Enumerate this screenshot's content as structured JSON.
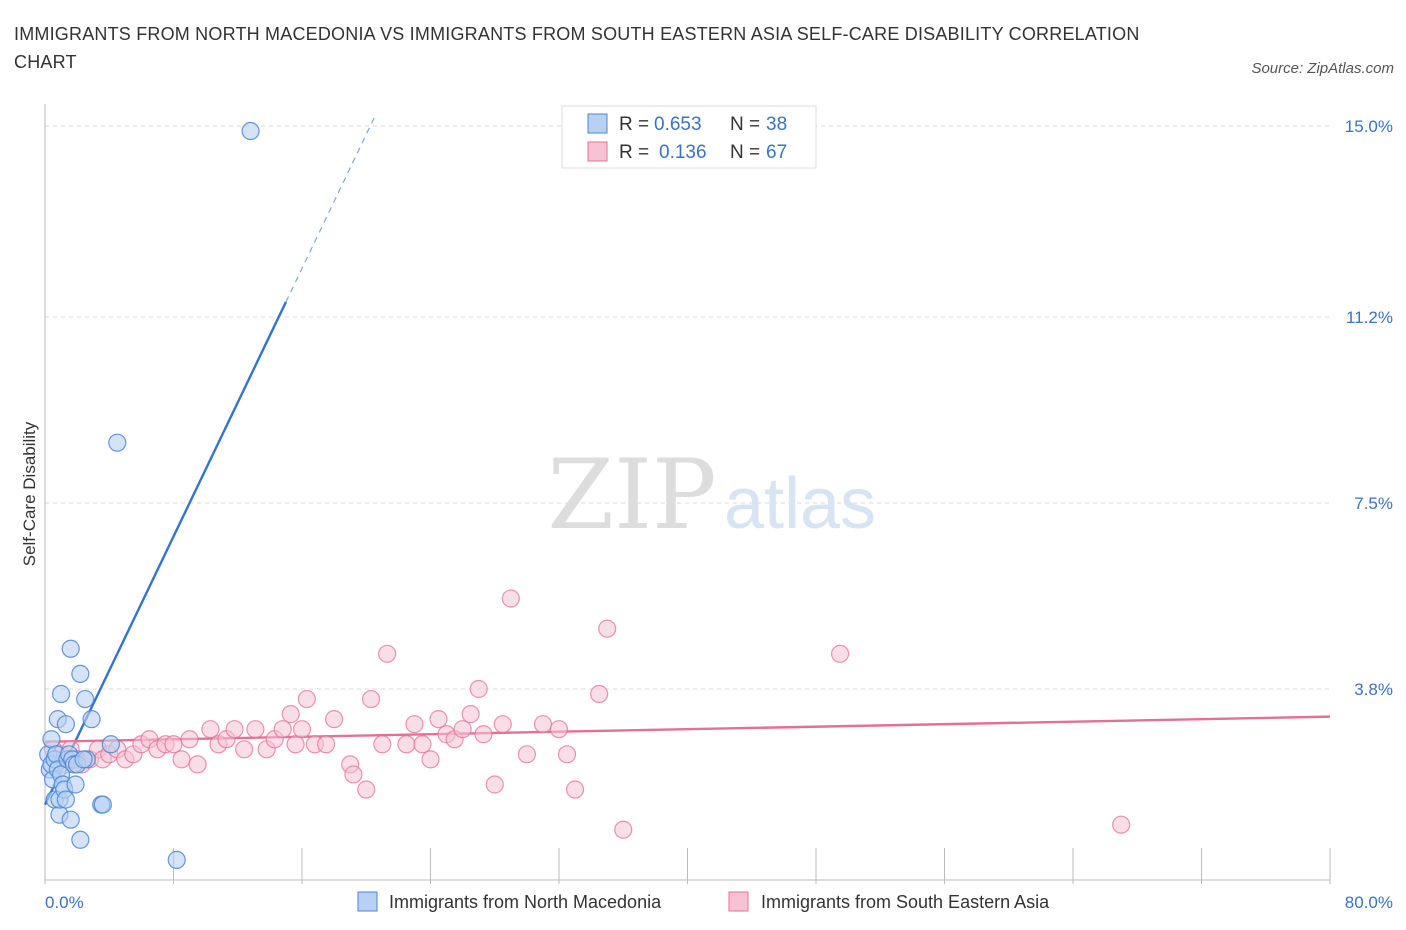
{
  "title": "IMMIGRANTS FROM NORTH MACEDONIA VS IMMIGRANTS FROM SOUTH EASTERN ASIA SELF-CARE DISABILITY CORRELATION CHART",
  "source": "Source: ZipAtlas.com",
  "watermark": {
    "zip": "ZIP",
    "atlas": "atlas"
  },
  "colors": {
    "blue": "#4a86d4",
    "blue_fill": "#b8d0f2",
    "pink": "#e46f98",
    "pink_fill": "#f5c3d4",
    "value_text": "#3a72c4"
  },
  "chart_data": {
    "type": "scatter",
    "title": "IMMIGRANTS FROM NORTH MACEDONIA VS IMMIGRANTS FROM SOUTH EASTERN ASIA SELF-CARE DISABILITY CORRELATION CHART",
    "xlabel": "",
    "ylabel": "Self-Care Disability",
    "xlim": [
      0,
      80
    ],
    "ylim": [
      0,
      15
    ],
    "x_tick_labels": {
      "min": "0.0%",
      "max": "80.0%"
    },
    "y_ticks": [
      {
        "value": 3.8,
        "label": "3.8%"
      },
      {
        "value": 7.5,
        "label": "7.5%"
      },
      {
        "value": 11.2,
        "label": "11.2%"
      },
      {
        "value": 15.0,
        "label": "15.0%"
      }
    ],
    "legend": {
      "placement": "top-center",
      "rows": [
        {
          "r_label": "R = ",
          "r_value": "0.653",
          "n_label": "N = ",
          "n_value": "38"
        },
        {
          "r_label": "R = ",
          "r_value": "0.136",
          "n_label": "N = ",
          "n_value": "67"
        }
      ]
    },
    "bottom_legend": [
      "Immigrants from North Macedonia",
      "Immigrants from South Eastern Asia"
    ],
    "series": [
      {
        "name": "Immigrants from North Macedonia",
        "trendline": {
          "x0": 0,
          "y0": 1.5,
          "x1": 15,
          "y1": 11.5,
          "dash_to_x": 20.5
        },
        "points": [
          [
            0.2,
            2.5
          ],
          [
            0.3,
            2.2
          ],
          [
            0.4,
            2.8
          ],
          [
            0.4,
            2.3
          ],
          [
            0.5,
            2.0
          ],
          [
            0.6,
            2.4
          ],
          [
            0.6,
            1.6
          ],
          [
            0.7,
            2.5
          ],
          [
            0.8,
            2.2
          ],
          [
            0.8,
            3.2
          ],
          [
            0.9,
            1.3
          ],
          [
            0.9,
            1.6
          ],
          [
            1.0,
            2.1
          ],
          [
            1.0,
            3.7
          ],
          [
            1.1,
            1.9
          ],
          [
            1.2,
            1.8
          ],
          [
            1.3,
            3.1
          ],
          [
            1.3,
            1.6
          ],
          [
            1.4,
            2.4
          ],
          [
            1.5,
            2.5
          ],
          [
            1.6,
            4.6
          ],
          [
            1.6,
            1.2
          ],
          [
            1.7,
            2.4
          ],
          [
            1.8,
            2.3
          ],
          [
            1.9,
            1.9
          ],
          [
            2.0,
            2.3
          ],
          [
            2.2,
            0.8
          ],
          [
            2.2,
            4.1
          ],
          [
            2.5,
            3.6
          ],
          [
            2.6,
            2.4
          ],
          [
            2.9,
            3.2
          ],
          [
            3.5,
            1.5
          ],
          [
            3.6,
            1.5
          ],
          [
            4.1,
            2.7
          ],
          [
            4.5,
            8.7
          ],
          [
            8.2,
            0.4
          ],
          [
            12.8,
            14.9
          ],
          [
            2.4,
            2.4
          ]
        ]
      },
      {
        "name": "Immigrants from South Eastern Asia",
        "trendline": {
          "x0": 0,
          "y0": 2.75,
          "x1": 80,
          "y1": 3.25
        },
        "points": [
          [
            0.5,
            2.6
          ],
          [
            1.0,
            2.5
          ],
          [
            1.3,
            2.3
          ],
          [
            1.6,
            2.6
          ],
          [
            2.0,
            2.4
          ],
          [
            2.3,
            2.3
          ],
          [
            2.8,
            2.4
          ],
          [
            3.3,
            2.6
          ],
          [
            3.6,
            2.4
          ],
          [
            4.0,
            2.5
          ],
          [
            4.5,
            2.6
          ],
          [
            5.0,
            2.4
          ],
          [
            5.5,
            2.5
          ],
          [
            6.0,
            2.7
          ],
          [
            6.5,
            2.8
          ],
          [
            7.0,
            2.6
          ],
          [
            7.5,
            2.7
          ],
          [
            8.0,
            2.7
          ],
          [
            8.5,
            2.4
          ],
          [
            9.0,
            2.8
          ],
          [
            9.5,
            2.3
          ],
          [
            10.3,
            3.0
          ],
          [
            10.8,
            2.7
          ],
          [
            11.3,
            2.8
          ],
          [
            11.8,
            3.0
          ],
          [
            12.4,
            2.6
          ],
          [
            13.1,
            3.0
          ],
          [
            13.8,
            2.6
          ],
          [
            14.3,
            2.8
          ],
          [
            14.8,
            3.0
          ],
          [
            15.3,
            3.3
          ],
          [
            15.6,
            2.7
          ],
          [
            16.0,
            3.0
          ],
          [
            16.3,
            3.6
          ],
          [
            16.8,
            2.7
          ],
          [
            17.5,
            2.7
          ],
          [
            18.0,
            3.2
          ],
          [
            19.0,
            2.3
          ],
          [
            19.2,
            2.1
          ],
          [
            20.0,
            1.8
          ],
          [
            20.3,
            3.6
          ],
          [
            21.0,
            2.7
          ],
          [
            21.3,
            4.5
          ],
          [
            22.5,
            2.7
          ],
          [
            23.0,
            3.1
          ],
          [
            23.5,
            2.7
          ],
          [
            24.0,
            2.4
          ],
          [
            24.5,
            3.2
          ],
          [
            25.0,
            2.9
          ],
          [
            25.5,
            2.8
          ],
          [
            26.0,
            3.0
          ],
          [
            26.5,
            3.3
          ],
          [
            27.0,
            3.8
          ],
          [
            27.3,
            2.9
          ],
          [
            28.0,
            1.9
          ],
          [
            28.5,
            3.1
          ],
          [
            29.0,
            5.6
          ],
          [
            30.0,
            2.5
          ],
          [
            31.0,
            3.1
          ],
          [
            32.0,
            3.0
          ],
          [
            32.5,
            2.5
          ],
          [
            33.0,
            1.8
          ],
          [
            34.5,
            3.7
          ],
          [
            35.0,
            5.0
          ],
          [
            36.0,
            1.0
          ],
          [
            49.5,
            4.5
          ],
          [
            67.0,
            1.1
          ]
        ]
      }
    ]
  }
}
